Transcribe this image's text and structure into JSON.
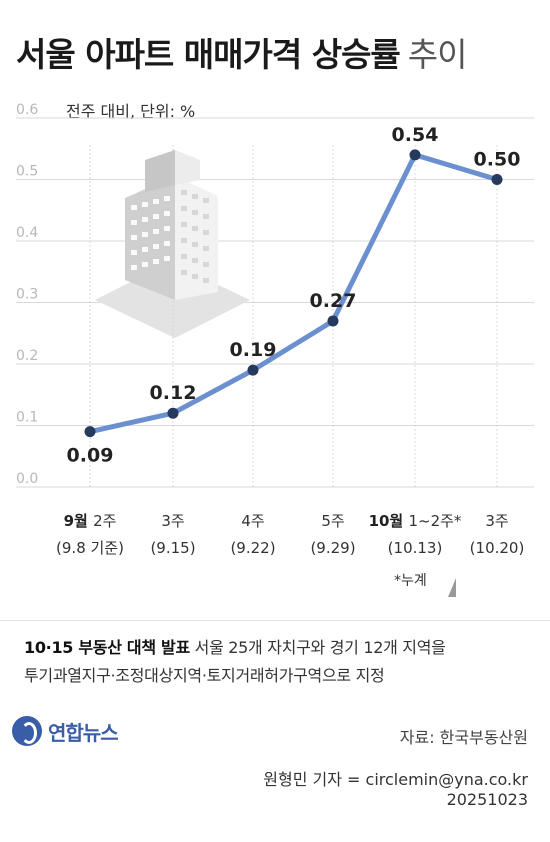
{
  "title_bold": "서울 아파트 매매가격 상승률",
  "title_light": "추이",
  "unit_label": "전주 대비, 단위: %",
  "note": "*누계",
  "desc": {
    "highlight": "10·15 부동산 대책 발표",
    "line1_rest": " 서울 25개 자치구와 경기 12개 지역을",
    "line2": "투기과열지구·조정대상지역·토지거래허가구역으로 지정"
  },
  "logo_text": "연합뉴스",
  "source": "자료: 한국부동산원",
  "credit": "원형민 기자 = circlemin@yna.co.kr",
  "date_code": "20251023",
  "colors": {
    "line": "#6b8fcf",
    "point": "#263a5e",
    "logo": "#3a5da8"
  },
  "chart_data": {
    "type": "line",
    "ylabel": "전주 대비, 단위: %",
    "ylim": [
      0,
      0.6
    ],
    "yticks": [
      "0.0",
      "0.1",
      "0.2",
      "0.3",
      "0.4",
      "0.5",
      "0.6"
    ],
    "x_labels": [
      {
        "month": "9월",
        "week": "2주",
        "date": "(9.8 기준)"
      },
      {
        "month": "",
        "week": "3주",
        "date": "(9.15)"
      },
      {
        "month": "",
        "week": "4주",
        "date": "(9.22)"
      },
      {
        "month": "",
        "week": "5주",
        "date": "(9.29)"
      },
      {
        "month": "10월",
        "week": "1~2주*",
        "date": "(10.13)"
      },
      {
        "month": "",
        "week": "3주",
        "date": "(10.20)"
      }
    ],
    "values": [
      0.09,
      0.12,
      0.19,
      0.27,
      0.54,
      0.5
    ],
    "data_labels": [
      "0.09",
      "0.12",
      "0.19",
      "0.27",
      "0.54",
      "0.50"
    ],
    "grid": true
  }
}
